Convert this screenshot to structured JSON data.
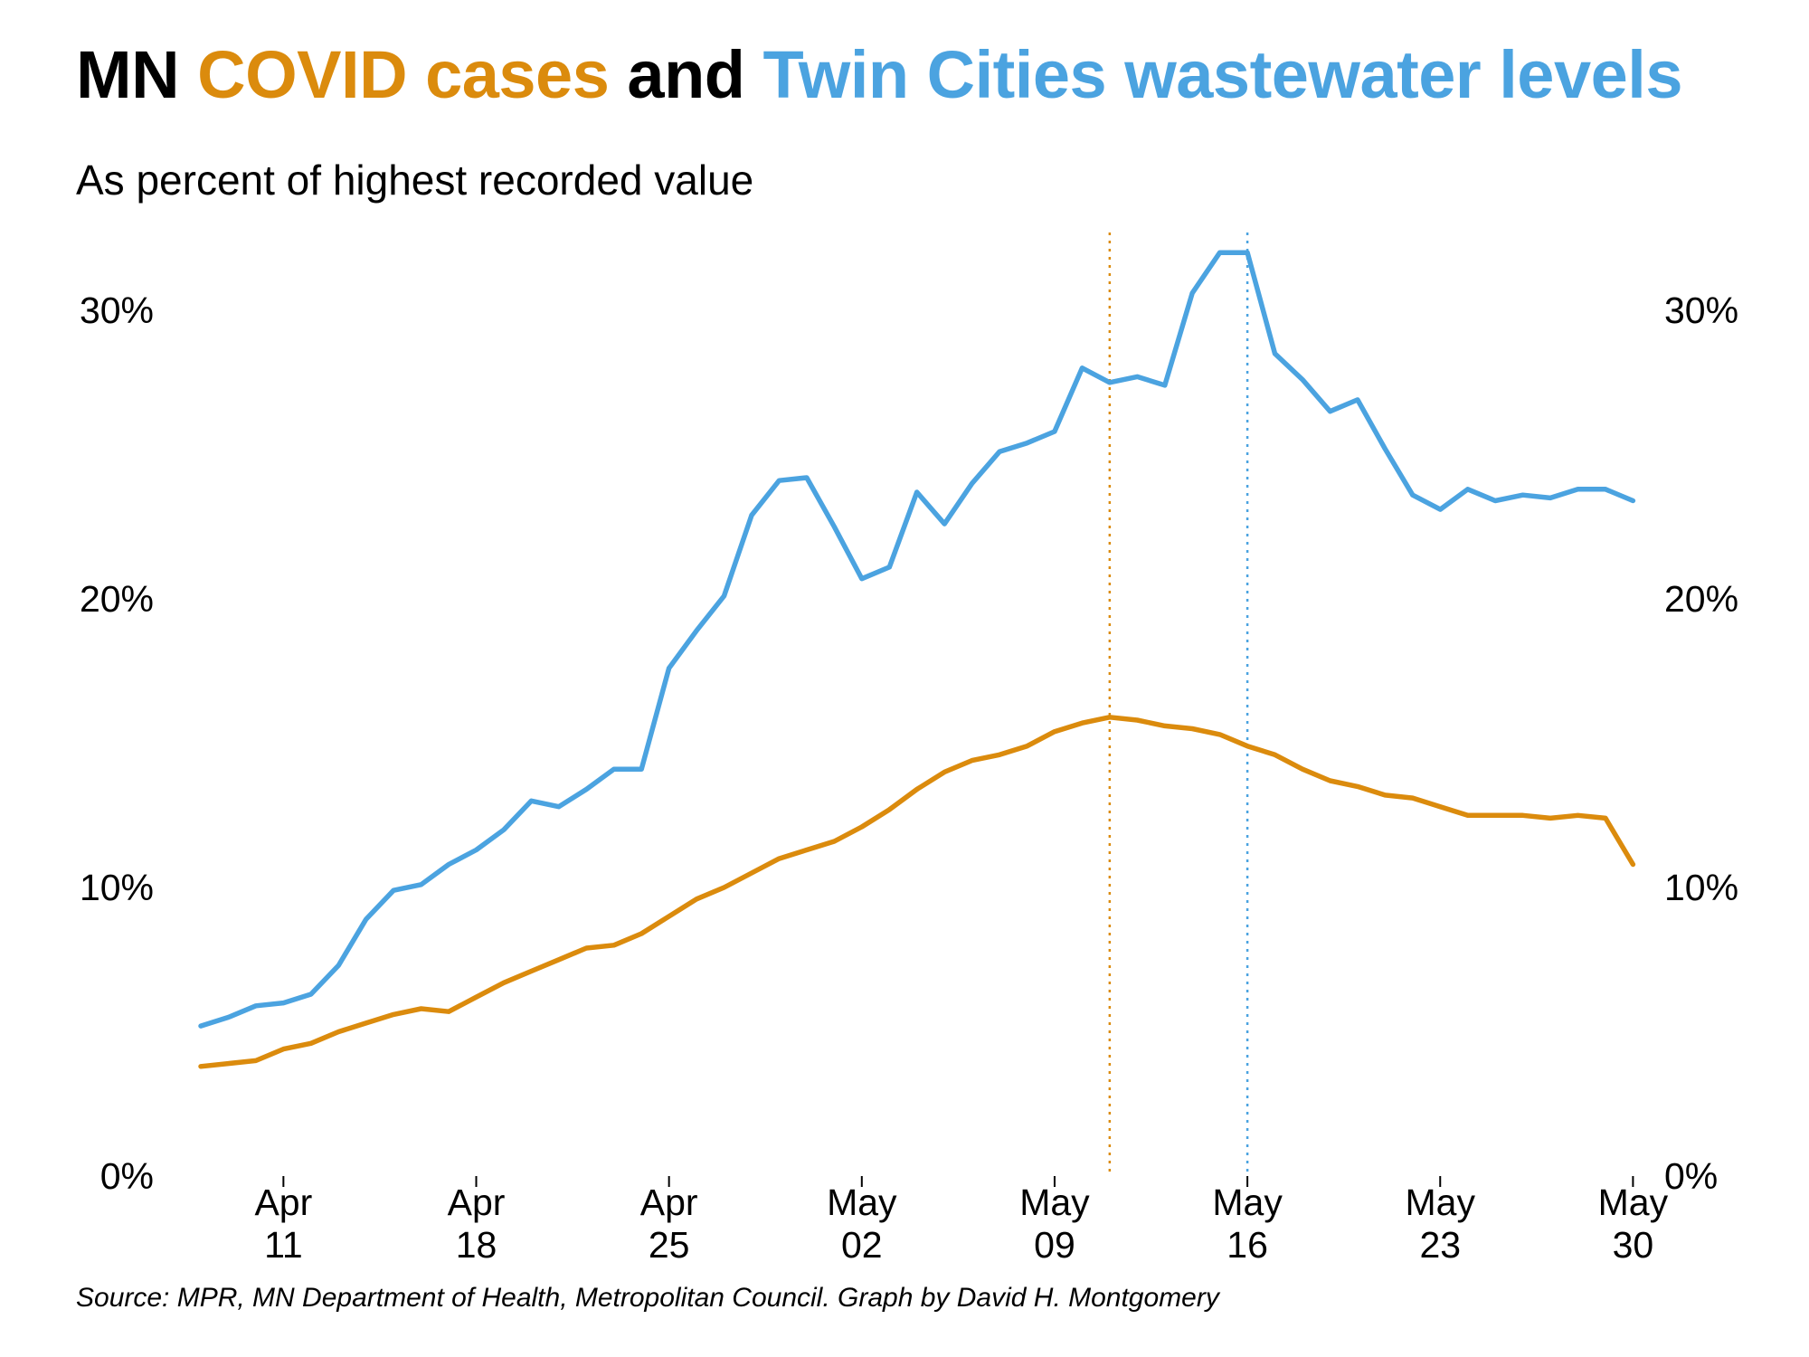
{
  "title": {
    "prefix": "MN ",
    "cases_label": "COVID cases",
    "joiner": " and ",
    "wastewater_label": "Twin Cities wastewater levels"
  },
  "subtitle": "As percent of highest recorded value",
  "source": "Source: MPR, MN Department of Health, Metropolitan Council. Graph by David H. Montgomery",
  "colors": {
    "cases": "#DB8B0D",
    "wastewater": "#4BA3E0",
    "text": "#000000"
  },
  "chart_data": {
    "type": "line",
    "title": "MN COVID cases and Twin Cities wastewater levels",
    "subtitle": "As percent of highest recorded value",
    "xlabel": "",
    "ylabel": "",
    "grid": false,
    "ylim": [
      0,
      32
    ],
    "x_start": "Apr 08",
    "x_end": "May 30",
    "x_ticks": [
      {
        "day": 3,
        "line1": "Apr",
        "line2": "11"
      },
      {
        "day": 10,
        "line1": "Apr",
        "line2": "18"
      },
      {
        "day": 17,
        "line1": "Apr",
        "line2": "25"
      },
      {
        "day": 24,
        "line1": "May",
        "line2": "02"
      },
      {
        "day": 31,
        "line1": "May",
        "line2": "09"
      },
      {
        "day": 38,
        "line1": "May",
        "line2": "16"
      },
      {
        "day": 45,
        "line1": "May",
        "line2": "23"
      },
      {
        "day": 52,
        "line1": "May",
        "line2": "30"
      }
    ],
    "y_ticks": [
      {
        "value": 0,
        "label": "0%"
      },
      {
        "value": 10,
        "label": "10%"
      },
      {
        "value": 20,
        "label": "20%"
      },
      {
        "value": 30,
        "label": "30%"
      }
    ],
    "series": [
      {
        "name": "COVID cases",
        "color": "#DB8B0D",
        "x_start_day": 0,
        "values": [
          3.8,
          3.9,
          4.0,
          4.4,
          4.6,
          5.0,
          5.3,
          5.6,
          5.8,
          5.7,
          6.2,
          6.7,
          7.1,
          7.5,
          7.9,
          8.0,
          8.4,
          9.0,
          9.6,
          10.0,
          10.5,
          11.0,
          11.3,
          11.6,
          12.1,
          12.7,
          13.4,
          14.0,
          14.4,
          14.6,
          14.9,
          15.4,
          15.7,
          15.9,
          15.8,
          15.6,
          15.5,
          15.3,
          14.9,
          14.6,
          14.1,
          13.7,
          13.5,
          13.2,
          13.1,
          12.8,
          12.5,
          12.5,
          12.5,
          12.4,
          12.5,
          12.4,
          10.8
        ]
      },
      {
        "name": "Twin Cities wastewater levels",
        "color": "#4BA3E0",
        "x_start_day": 0,
        "values": [
          5.2,
          5.5,
          5.9,
          6.0,
          6.3,
          7.3,
          8.9,
          9.9,
          10.1,
          10.8,
          11.3,
          12.0,
          13.0,
          12.8,
          13.4,
          14.1,
          14.1,
          17.6,
          18.9,
          20.1,
          22.9,
          24.1,
          24.2,
          22.5,
          20.7,
          21.1,
          23.7,
          22.6,
          24.0,
          25.1,
          25.4,
          25.8,
          28.0,
          27.5,
          27.7,
          27.4,
          30.6,
          32.0,
          32.0,
          28.5,
          27.6,
          26.5,
          26.9,
          25.2,
          23.6,
          23.1,
          23.8,
          23.4,
          23.6,
          23.5,
          23.8,
          23.8,
          23.4
        ]
      }
    ],
    "reference_lines": [
      {
        "series": "COVID cases",
        "day": 33,
        "style": "dotted",
        "color": "#DB8B0D"
      },
      {
        "series": "Twin Cities wastewater levels",
        "day": 38,
        "style": "dotted",
        "color": "#4BA3E0"
      }
    ]
  }
}
